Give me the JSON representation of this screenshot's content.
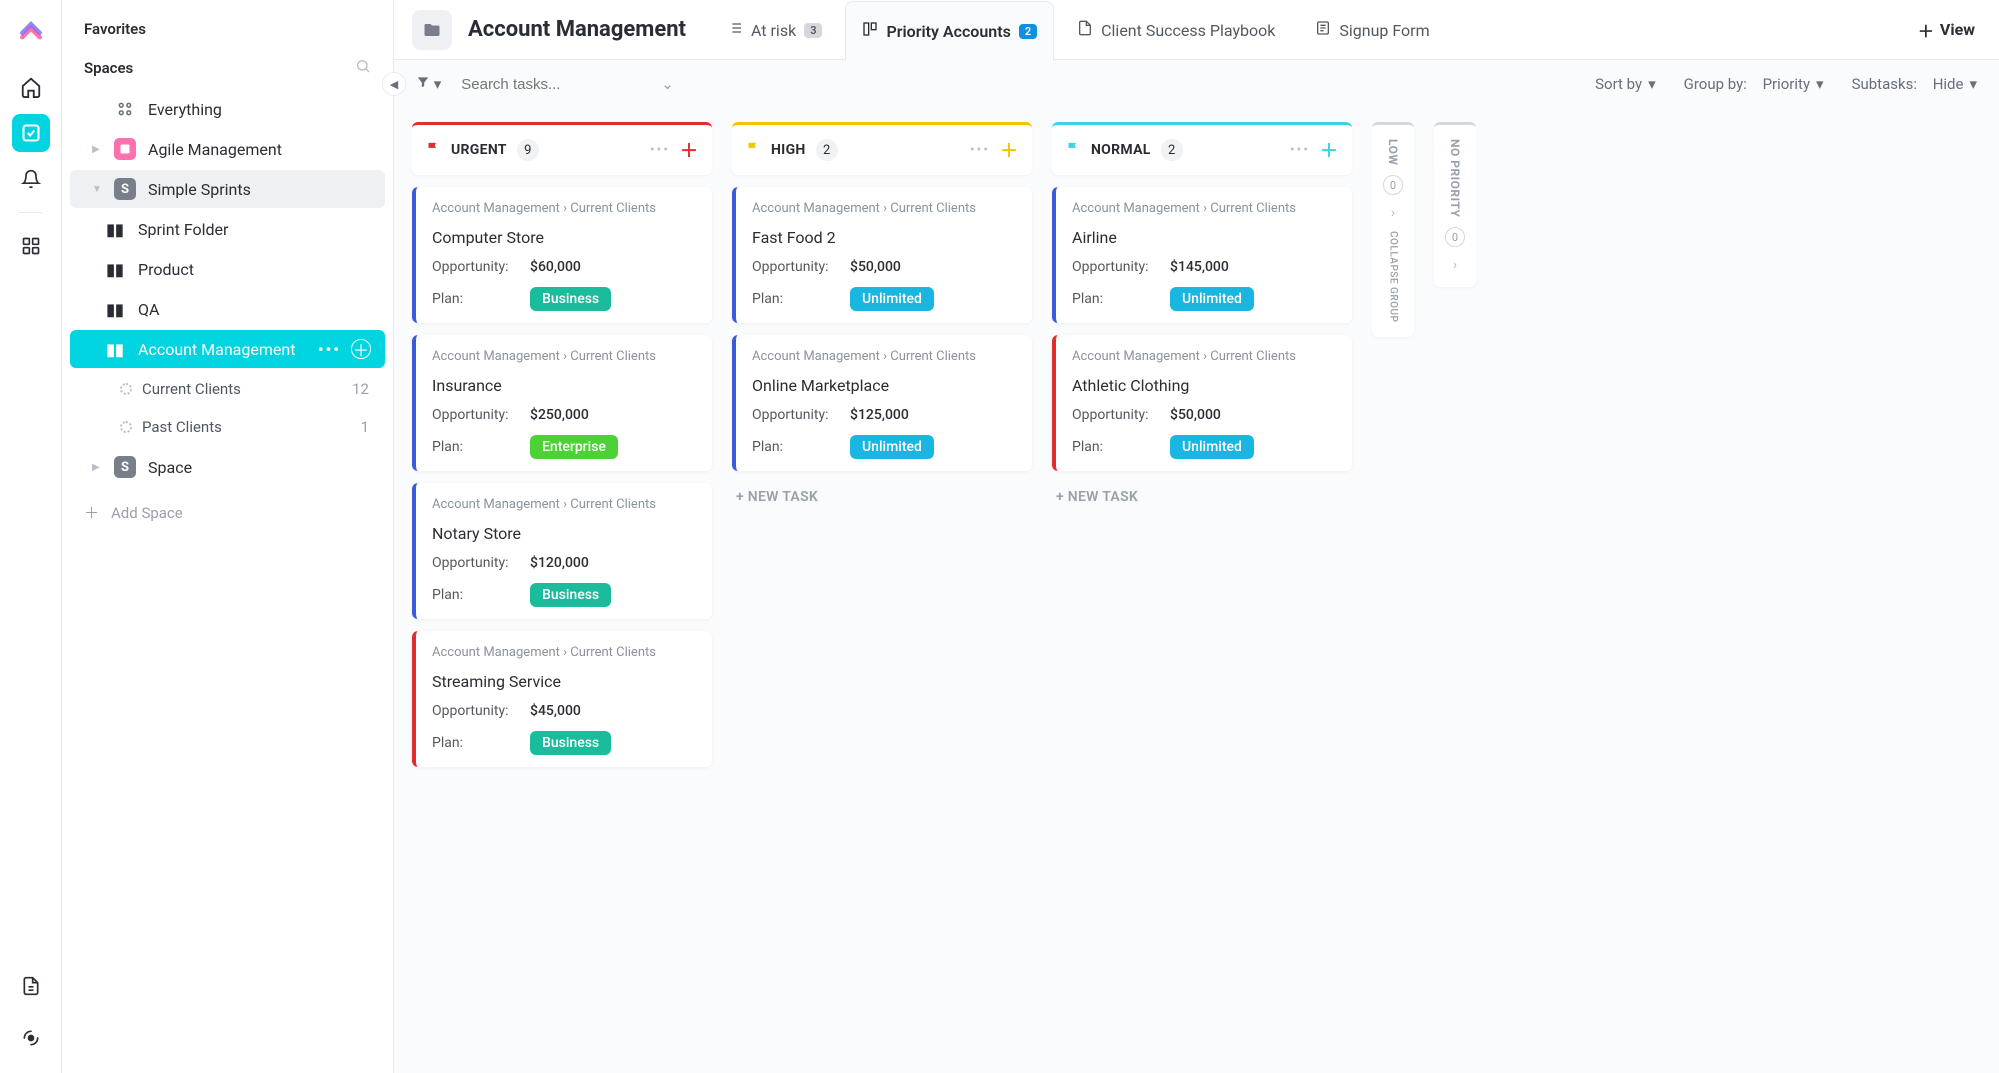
{
  "sidebar": {
    "favorites": "Favorites",
    "spaces": "Spaces",
    "everything": "Everything",
    "items": [
      {
        "label": "Agile Management",
        "icon": "pink",
        "letter": ""
      },
      {
        "label": "Simple Sprints",
        "icon": "gray",
        "letter": "S"
      }
    ],
    "folders": [
      {
        "label": "Sprint Folder"
      },
      {
        "label": "Product"
      },
      {
        "label": "QA"
      }
    ],
    "account_mgmt": "Account Management",
    "children": [
      {
        "label": "Current Clients",
        "count": "12"
      },
      {
        "label": "Past Clients",
        "count": "1"
      }
    ],
    "space": "Space",
    "space_letter": "S",
    "add_space": "Add Space"
  },
  "header": {
    "title": "Account Management",
    "tabs": [
      {
        "label": "At risk",
        "badge": "3",
        "badge_style": "gray",
        "icon": "list"
      },
      {
        "label": "Priority Accounts",
        "badge": "2",
        "badge_style": "blue",
        "icon": "board",
        "active": true
      },
      {
        "label": "Client Success Playbook",
        "icon": "doc"
      },
      {
        "label": "Signup Form",
        "icon": "form"
      }
    ],
    "view_btn": "View"
  },
  "toolbar": {
    "search_placeholder": "Search tasks...",
    "sort_by": "Sort by",
    "group_by_label": "Group by:",
    "group_by_value": "Priority",
    "subtasks_label": "Subtasks:",
    "subtasks_value": "Hide"
  },
  "columns": [
    {
      "name": "URGENT",
      "count": "9",
      "border_color": "#e02d2d",
      "flag_color": "#e02d2d",
      "plus_color": "#e02d2d",
      "cards": [
        {
          "edge": "#3b5bdb",
          "crumb": "Account Management  ›  Current Clients",
          "title": "Computer Store",
          "opportunity": "$60,000",
          "plan": "Business",
          "plan_color": "#1abc9c"
        },
        {
          "edge": "#3b5bdb",
          "crumb": "Account Management  ›  Current Clients",
          "title": "Insurance",
          "opportunity": "$250,000",
          "plan": "Enterprise",
          "plan_color": "#4cd137"
        },
        {
          "edge": "#3b5bdb",
          "crumb": "Account Management  ›  Current Clients",
          "title": "Notary Store",
          "opportunity": "$120,000",
          "plan": "Business",
          "plan_color": "#1abc9c"
        },
        {
          "edge": "#e02d2d",
          "crumb": "Account Management  ›  Current Clients",
          "title": "Streaming Service",
          "opportunity": "$45,000",
          "plan": "Business",
          "plan_color": "#1abc9c"
        }
      ]
    },
    {
      "name": "HIGH",
      "count": "2",
      "border_color": "#f5c400",
      "flag_color": "#f5c400",
      "plus_color": "#f5c400",
      "cards": [
        {
          "edge": "#3b5bdb",
          "crumb": "Account Management  ›  Current Clients",
          "title": "Fast Food 2",
          "opportunity": "$50,000",
          "plan": "Unlimited",
          "plan_color": "#18b6e0"
        },
        {
          "edge": "#3b5bdb",
          "crumb": "Account Management  ›  Current Clients",
          "title": "Online Marketplace",
          "opportunity": "$125,000",
          "plan": "Unlimited",
          "plan_color": "#18b6e0"
        }
      ],
      "new_task": "+ NEW TASK"
    },
    {
      "name": "NORMAL",
      "count": "2",
      "border_color": "#3fd0e6",
      "flag_color": "#3fd0e6",
      "plus_color": "#3fd0e6",
      "cards": [
        {
          "edge": "#3b5bdb",
          "crumb": "Account Management  ›  Current Clients",
          "title": "Airline",
          "opportunity": "$145,000",
          "plan": "Unlimited",
          "plan_color": "#18b6e0"
        },
        {
          "edge": "#e02d2d",
          "crumb": "Account Management  ›  Current Clients",
          "title": "Athletic Clothing",
          "opportunity": "$50,000",
          "plan": "Unlimited",
          "plan_color": "#18b6e0"
        }
      ],
      "new_task": "+ NEW TASK"
    }
  ],
  "collapsed_columns": [
    {
      "label": "LOW",
      "count": "0",
      "sublabel": "COLLAPSE GROUP"
    },
    {
      "label": "NO PRIORITY",
      "count": "0"
    }
  ],
  "labels": {
    "opportunity": "Opportunity:",
    "plan": "Plan:"
  },
  "plan_colors": {
    "business": "#1abc9c",
    "enterprise": "#4cd137",
    "unlimited": "#18b6e0"
  }
}
